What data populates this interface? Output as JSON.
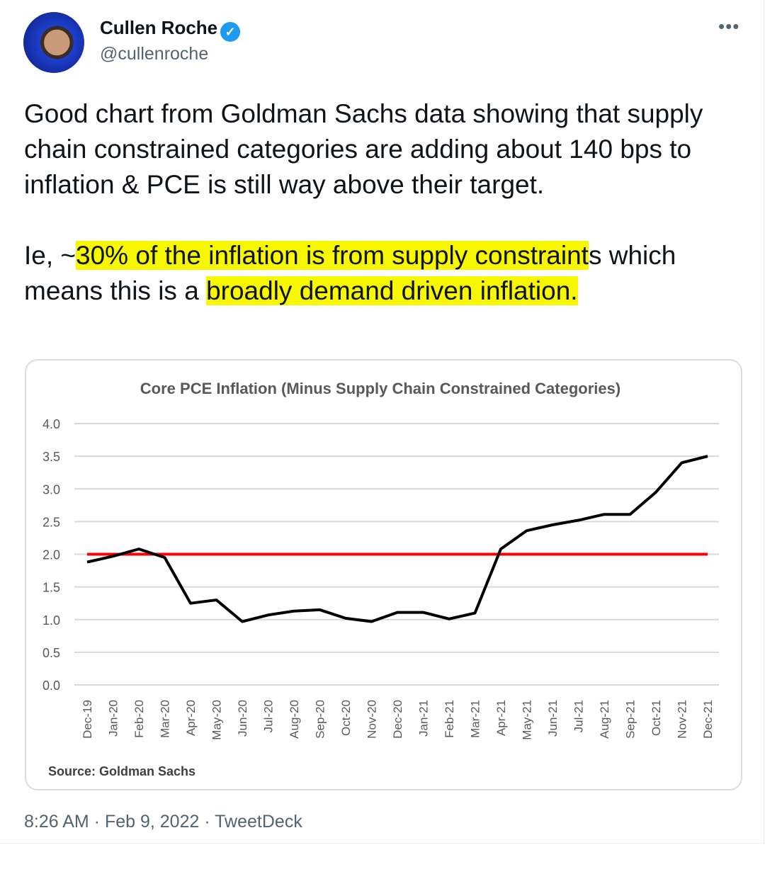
{
  "author": {
    "name": "Cullen Roche",
    "handle": "@cullenroche",
    "verified": true,
    "more_icon": "ellipsis-icon"
  },
  "tweet": {
    "line1": "Good chart from Goldman Sachs data showing that supply chain constrained categories are adding about 140 bps to inflation & PCE is still way above their target.",
    "p2_pre": "Ie, ~",
    "p2_hl1": "30% of the inflation is from supply constraint",
    "p2_mid": "s which means this is a ",
    "p2_hl2": "broadly demand driven inflation.",
    "highlight_color": "#f7f700"
  },
  "footer": {
    "time": "8:26 AM",
    "date": "Feb 9, 2022",
    "source": "TweetDeck",
    "sep": " · "
  },
  "chart_data": {
    "type": "line",
    "title": "Core PCE Inflation (Minus Supply Chain Constrained Categories)",
    "source": "Source: Goldman Sachs",
    "categories": [
      "Dec-19",
      "Jan-20",
      "Feb-20",
      "Mar-20",
      "Apr-20",
      "May-20",
      "Jun-20",
      "Jul-20",
      "Aug-20",
      "Sep-20",
      "Oct-20",
      "Nov-20",
      "Dec-20",
      "Jan-21",
      "Feb-21",
      "Mar-21",
      "Apr-21",
      "May-21",
      "Jun-21",
      "Jul-21",
      "Aug-21",
      "Sep-21",
      "Oct-21",
      "Nov-21",
      "Dec-21"
    ],
    "series": [
      {
        "values": [
          1.88,
          1.97,
          2.08,
          1.95,
          1.25,
          1.3,
          0.97,
          1.07,
          1.13,
          1.15,
          1.02,
          0.97,
          1.11,
          1.11,
          1.01,
          1.1,
          2.08,
          2.36,
          2.45,
          2.52,
          2.61,
          2.61,
          2.95,
          3.4,
          3.5
        ],
        "color": "#000000"
      },
      {
        "values": [
          2,
          2,
          2,
          2,
          2,
          2,
          2,
          2,
          2,
          2,
          2,
          2,
          2,
          2,
          2,
          2,
          2,
          2,
          2,
          2,
          2,
          2,
          2,
          2,
          2
        ],
        "color": "#ff0000"
      }
    ],
    "yticks": [
      "0.0",
      "0.5",
      "1.0",
      "1.5",
      "2.0",
      "2.5",
      "3.0",
      "3.5",
      "4.0"
    ],
    "ylim": [
      0,
      4
    ],
    "grid": true
  }
}
